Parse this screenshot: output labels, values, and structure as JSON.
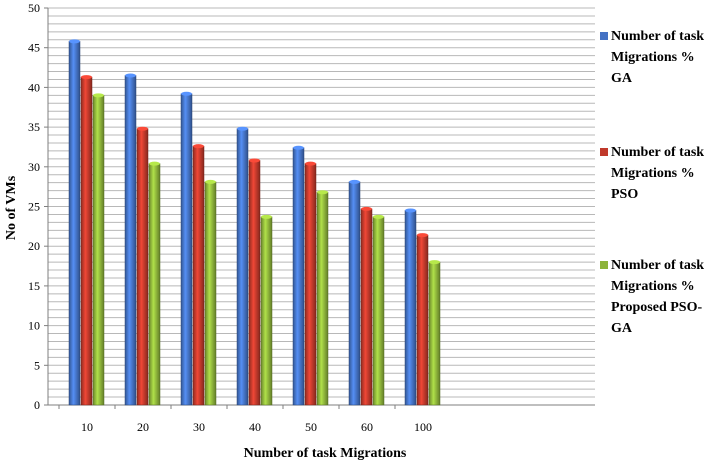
{
  "chart_data": {
    "type": "bar",
    "xlabel": "Number of task Migrations",
    "ylabel": "No of VMs",
    "ylim": [
      0,
      50
    ],
    "y_tick_step": 5,
    "grid": true,
    "legend_position": "right",
    "categories": [
      "10",
      "20",
      "30",
      "40",
      "50",
      "60",
      "100"
    ],
    "series": [
      {
        "name": "Number of task Migrations % GA",
        "legend_lines": [
          "Number of task",
          "Migrations %",
          "GA"
        ],
        "color": "#4472C4",
        "values": [
          45.8,
          41.5,
          39.2,
          34.8,
          32.4,
          28.1,
          24.5
        ]
      },
      {
        "name": "Number of task Migrations % PSO",
        "legend_lines": [
          "Number of task",
          "Migrations %",
          "PSO"
        ],
        "color": "#C0392B",
        "values": [
          41.3,
          34.8,
          32.6,
          30.8,
          30.4,
          24.7,
          21.4
        ]
      },
      {
        "name": "Number of task Migrations % Proposed PSO-GA",
        "legend_lines": [
          "Number of task",
          "Migrations %",
          "Proposed PSO-",
          "GA"
        ],
        "color": "#8DB33A",
        "values": [
          39.0,
          30.4,
          28.1,
          23.7,
          26.8,
          23.7,
          18.0
        ]
      }
    ]
  }
}
